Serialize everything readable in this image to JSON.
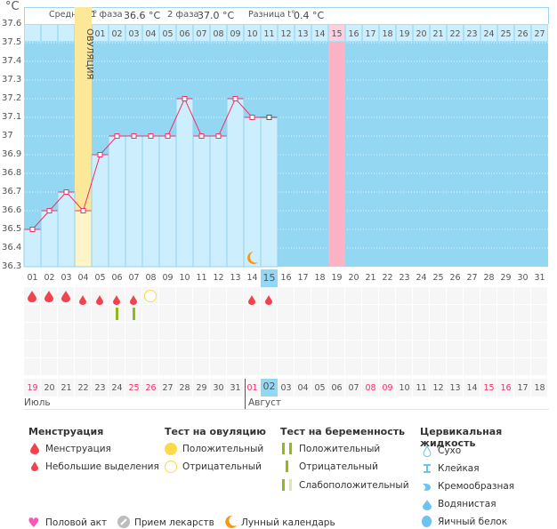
{
  "unit": "°C",
  "header": {
    "avg_label": "Средняя t°",
    "phase1_label": "1 фаза",
    "phase1_value": "36.6 °C",
    "phase2_label": "2 фаза",
    "phase2_value": "37.0 °C",
    "diff_label": "Разница t°",
    "diff_value": "0.4 °C"
  },
  "ovulation_label": "ОВУЛЯЦИЯ",
  "y_ticks": [
    "37.6",
    "37.5",
    "37.4",
    "37.3",
    "37.2",
    "37.1",
    "37",
    "36.9",
    "36.8",
    "36.7",
    "36.6",
    "36.5",
    "36.4",
    "36.3"
  ],
  "chart_data": {
    "type": "line",
    "ylim": [
      36.3,
      37.6
    ],
    "days": [
      1,
      2,
      3,
      4,
      5,
      6,
      7,
      8,
      9,
      10,
      11,
      12,
      13,
      14,
      15
    ],
    "temperatures": [
      36.5,
      36.6,
      36.7,
      36.6,
      36.9,
      37.0,
      37.0,
      37.0,
      37.0,
      37.2,
      37.0,
      37.0,
      37.2,
      37.1,
      37.1
    ]
  },
  "ovulation_day": 4,
  "current_day": 15,
  "highlight_day": 19,
  "top_numbers": [
    "",
    "",
    "",
    "",
    "01",
    "02",
    "03",
    "04",
    "05",
    "06",
    "07",
    "08",
    "09",
    "10",
    "11",
    "12",
    "13",
    "14",
    "15",
    "16",
    "17",
    "18",
    "19",
    "20",
    "21",
    "22",
    "23",
    "24",
    "25",
    "26",
    "27"
  ],
  "cycle_days": [
    "01",
    "02",
    "03",
    "04",
    "05",
    "06",
    "07",
    "08",
    "09",
    "10",
    "11",
    "12",
    "13",
    "14",
    "15",
    "16",
    "17",
    "18",
    "19",
    "20",
    "21",
    "22",
    "23",
    "24",
    "25",
    "26",
    "27",
    "28",
    "29",
    "30",
    "31"
  ],
  "dates": [
    "19",
    "20",
    "21",
    "22",
    "23",
    "24",
    "25",
    "26",
    "27",
    "28",
    "29",
    "30",
    "31",
    "01",
    "02",
    "03",
    "04",
    "05",
    "06",
    "07",
    "08",
    "09",
    "10",
    "11",
    "12",
    "13",
    "14",
    "15",
    "16",
    "17",
    "18"
  ],
  "weekend_dates": [
    0,
    6,
    7,
    13,
    20,
    21,
    27,
    28
  ],
  "months": {
    "july": "Июль",
    "august": "Август"
  },
  "marks": {
    "menstruation": [
      1,
      2,
      3
    ],
    "spotting": [
      4,
      5,
      6,
      7,
      14,
      15
    ],
    "ovulation_negative": [
      8
    ],
    "pregnancy_negative": [
      6,
      7
    ],
    "moon": [
      14
    ]
  },
  "colors": {
    "chart_bg": "#93d7f2",
    "bar": "#cdeefc",
    "line": "#f0306a",
    "ovulation": "#fde89a",
    "highlight": "#fdb3c6",
    "drop": "#f0424f",
    "test": "#8fba1a",
    "moon": "#f29a12"
  },
  "legend": {
    "menstruation": {
      "title": "Менструация",
      "items": [
        "Менструация",
        "Небольшие выделения"
      ]
    },
    "ovulation_test": {
      "title": "Тест на овуляцию",
      "items": [
        "Положительный",
        "Отрицательный"
      ]
    },
    "pregnancy_test": {
      "title": "Тест на беременность",
      "items": [
        "Положительный",
        "Отрицательный",
        "Слабоположительный"
      ]
    },
    "cervical": {
      "title": "Цервикальная жидкость",
      "items": [
        "Сухо",
        "Клейкая",
        "Кремообразная",
        "Водянистая",
        "Яичный белок"
      ]
    },
    "other": [
      "Половой акт",
      "Прием лекарств",
      "Лунный календарь"
    ]
  }
}
